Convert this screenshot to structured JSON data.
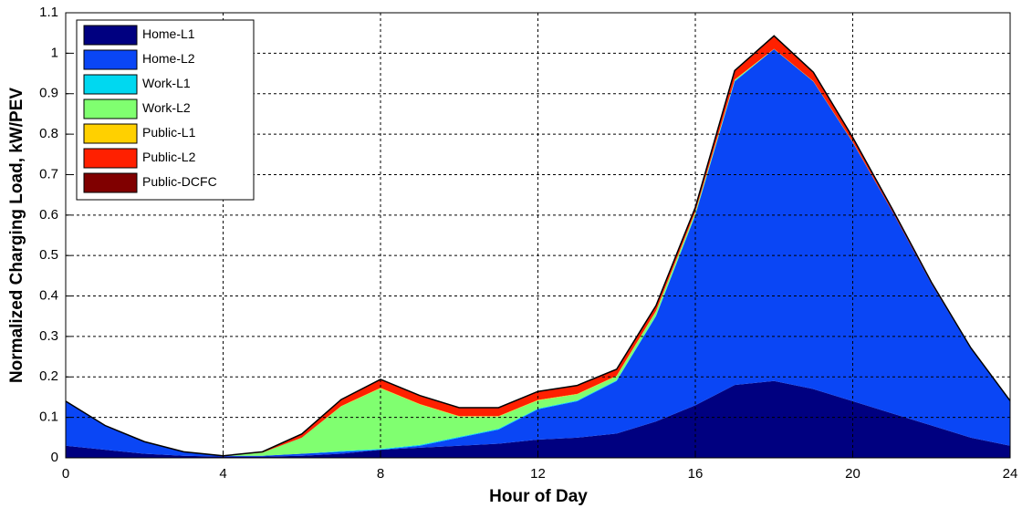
{
  "chart_data": {
    "type": "stacked_area",
    "xlabel": "Hour of Day",
    "ylabel": "Normalized Charging Load, kW/PEV",
    "x": [
      0,
      1,
      2,
      3,
      4,
      5,
      6,
      7,
      8,
      9,
      10,
      11,
      12,
      13,
      14,
      15,
      16,
      17,
      18,
      19,
      20,
      21,
      22,
      23,
      24
    ],
    "xlim": [
      0,
      24
    ],
    "xticks": [
      0,
      4,
      8,
      12,
      16,
      20,
      24
    ],
    "ylim": [
      0,
      1.1
    ],
    "yticks": [
      0,
      0.1,
      0.2,
      0.3,
      0.4,
      0.5,
      0.6,
      0.7,
      0.8,
      0.9,
      1,
      1.1
    ],
    "grid": true,
    "legend": "upper left",
    "series": [
      {
        "name": "Home-L1",
        "color": "#000080",
        "values": [
          0.03,
          0.02,
          0.01,
          0.005,
          0.003,
          0.003,
          0.005,
          0.01,
          0.02,
          0.025,
          0.03,
          0.035,
          0.045,
          0.05,
          0.06,
          0.09,
          0.13,
          0.18,
          0.19,
          0.17,
          0.14,
          0.11,
          0.08,
          0.05,
          0.03
        ]
      },
      {
        "name": "Home-L2",
        "color": "#0a46f5",
        "values": [
          0.11,
          0.06,
          0.03,
          0.01,
          0.002,
          0.002,
          0.005,
          0.005,
          0,
          0.005,
          0.02,
          0.035,
          0.075,
          0.09,
          0.13,
          0.26,
          0.47,
          0.75,
          0.82,
          0.76,
          0.64,
          0.5,
          0.35,
          0.22,
          0.11
        ]
      },
      {
        "name": "Work-L1",
        "color": "#00d8f0",
        "values": [
          0,
          0,
          0,
          0,
          0,
          0,
          0,
          0.002,
          0.002,
          0.002,
          0.002,
          0.002,
          0.002,
          0.002,
          0.002,
          0.002,
          0.002,
          0.002,
          0,
          0,
          0,
          0,
          0,
          0,
          0
        ]
      },
      {
        "name": "Work-L2",
        "color": "#80ff70",
        "values": [
          0,
          0,
          0,
          0,
          0,
          0.008,
          0.04,
          0.11,
          0.15,
          0.1,
          0.05,
          0.03,
          0.02,
          0.015,
          0.01,
          0.01,
          0.005,
          0.002,
          0,
          0,
          0,
          0,
          0,
          0,
          0
        ]
      },
      {
        "name": "Public-L1",
        "color": "#ffd000",
        "values": [
          0,
          0,
          0,
          0,
          0,
          0,
          0,
          0.001,
          0.001,
          0.001,
          0.001,
          0.001,
          0.001,
          0.001,
          0.001,
          0.001,
          0.001,
          0.001,
          0.001,
          0.001,
          0.001,
          0,
          0,
          0,
          0
        ]
      },
      {
        "name": "Public-L2",
        "color": "#ff2000",
        "values": [
          0,
          0,
          0,
          0,
          0,
          0.002,
          0.008,
          0.015,
          0.02,
          0.02,
          0.02,
          0.02,
          0.02,
          0.02,
          0.015,
          0.012,
          0.01,
          0.02,
          0.03,
          0.02,
          0.01,
          0.005,
          0.003,
          0.002,
          0.001
        ]
      },
      {
        "name": "Public-DCFC",
        "color": "#800000",
        "values": [
          0,
          0,
          0,
          0,
          0,
          0,
          0.001,
          0.001,
          0.001,
          0.001,
          0.001,
          0.001,
          0.001,
          0.001,
          0.001,
          0.001,
          0.001,
          0.002,
          0.002,
          0.002,
          0.001,
          0.001,
          0.001,
          0,
          0
        ]
      }
    ]
  }
}
